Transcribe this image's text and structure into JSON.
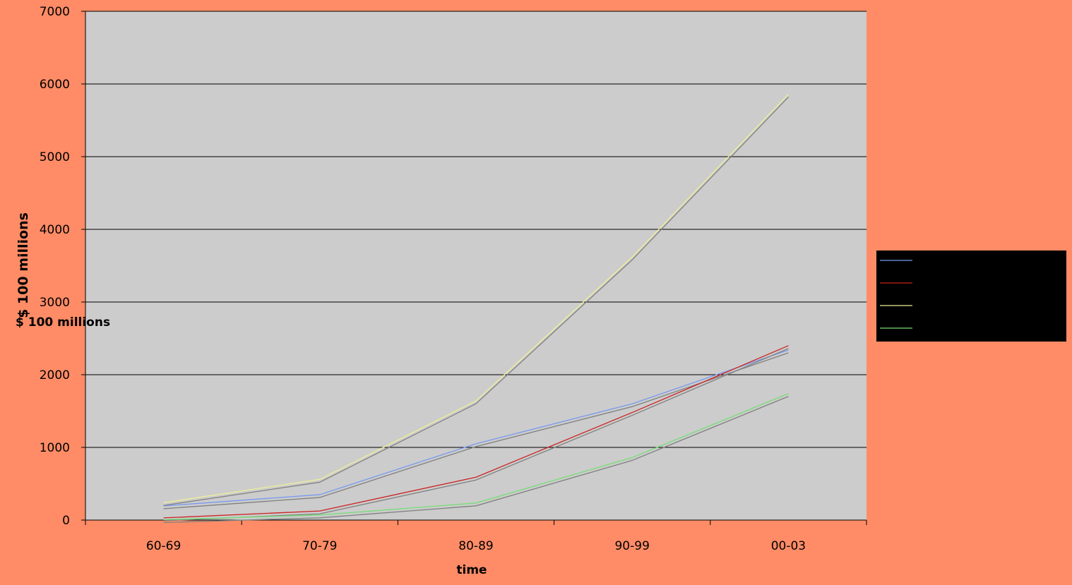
{
  "chart_data": {
    "type": "line",
    "title": "",
    "xlabel": "time",
    "ylabel": "$ 100 millions",
    "ylabel_overlay": "$ 100 millions",
    "categories": [
      "60-69",
      "70-79",
      "80-89",
      "90-99",
      "00-03"
    ],
    "ylim": [
      0,
      7000
    ],
    "yticks": [
      0,
      1000,
      2000,
      3000,
      4000,
      5000,
      6000,
      7000
    ],
    "grid": true,
    "legend_position": "right",
    "series": [
      {
        "values": [
          195,
          350,
          1050,
          1600,
          2340
        ],
        "color": "#7799EE"
      },
      {
        "values": [
          30,
          125,
          590,
          1480,
          2400
        ],
        "color": "#CC2222"
      },
      {
        "values": [
          240,
          560,
          1640,
          3620,
          5860
        ],
        "color": "#EEEE99"
      },
      {
        "values": [
          5,
          70,
          235,
          860,
          1740
        ],
        "color": "#77DD77"
      }
    ],
    "shadow_color": "#808080"
  },
  "colors": {
    "background": "#FF8C66",
    "plot_area": "#CCCCCC",
    "gridline": "#000000",
    "legend_bg": "#000000"
  }
}
